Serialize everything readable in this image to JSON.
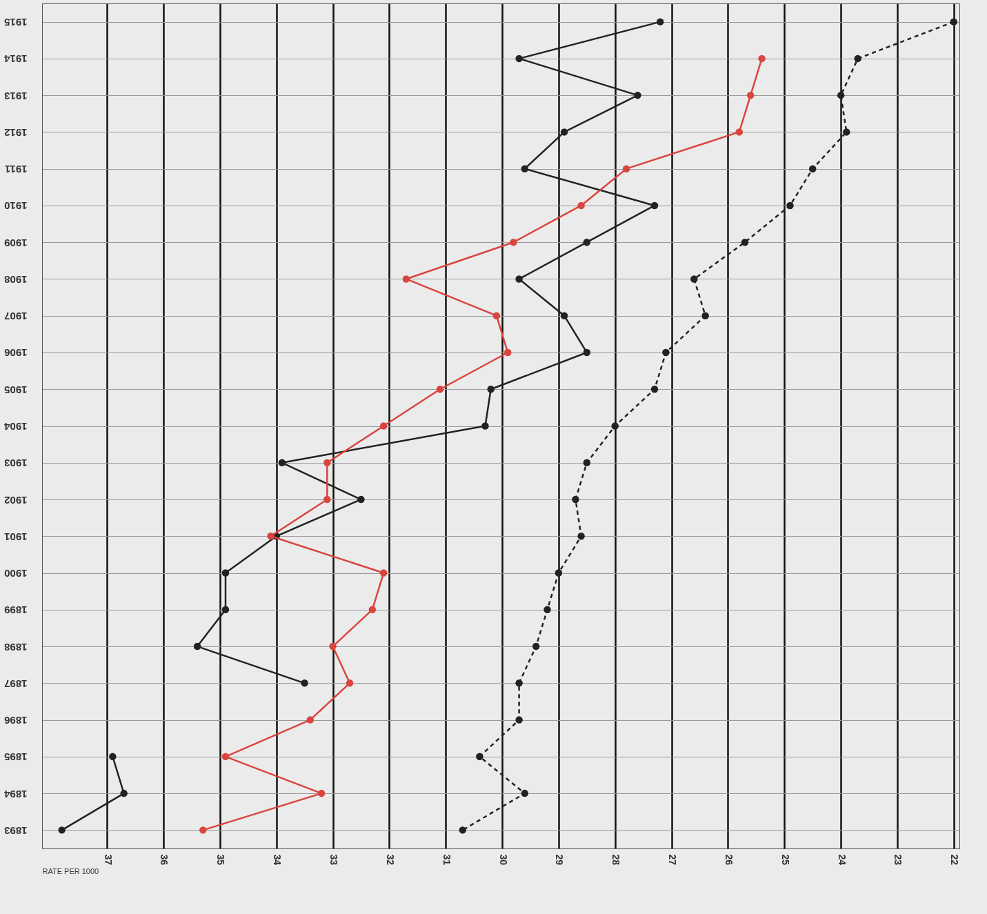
{
  "chart_data": {
    "type": "line",
    "orientation": "horizontal",
    "xlabel": "RATE PER 1000",
    "categories": [
      "1915",
      "1914",
      "1913",
      "1912",
      "1911",
      "1910",
      "1909",
      "1908",
      "1907",
      "1906",
      "1905",
      "1904",
      "1903",
      "1902",
      "1901",
      "1900",
      "1899",
      "1898",
      "1897",
      "1896",
      "1895",
      "1894",
      "1893"
    ],
    "series": [
      {
        "color": "#222222",
        "line_style": "solid",
        "values": [
          27.2,
          29.7,
          27.6,
          28.9,
          29.6,
          27.3,
          28.5,
          29.7,
          28.9,
          28.5,
          30.2,
          30.3,
          33.9,
          32.5,
          34.0,
          34.9,
          34.9,
          35.4,
          33.5,
          null,
          36.9,
          36.7,
          37.8
        ]
      },
      {
        "color": "#d9453e",
        "line_style": "solid",
        "values": [
          null,
          25.4,
          25.6,
          25.8,
          27.8,
          28.6,
          29.8,
          31.7,
          30.1,
          29.9,
          31.1,
          32.1,
          33.1,
          33.1,
          34.1,
          32.1,
          32.3,
          33.0,
          32.7,
          33.4,
          34.9,
          33.2,
          35.3
        ]
      },
      {
        "color": "#222222",
        "line_style": "dashed",
        "values": [
          22.0,
          23.7,
          24.0,
          23.9,
          24.5,
          24.9,
          25.7,
          26.6,
          26.4,
          27.1,
          27.3,
          28.0,
          28.5,
          28.7,
          28.6,
          29.0,
          29.2,
          29.4,
          29.7,
          29.7,
          30.4,
          29.6,
          30.7
        ]
      }
    ],
    "xlim": [
      38.15,
      21.9
    ],
    "xticks": [
      37,
      36,
      35,
      34,
      33,
      32,
      31,
      30,
      29,
      28,
      27,
      26,
      25,
      24,
      23,
      22
    ],
    "marker": "circle",
    "grid": true
  }
}
